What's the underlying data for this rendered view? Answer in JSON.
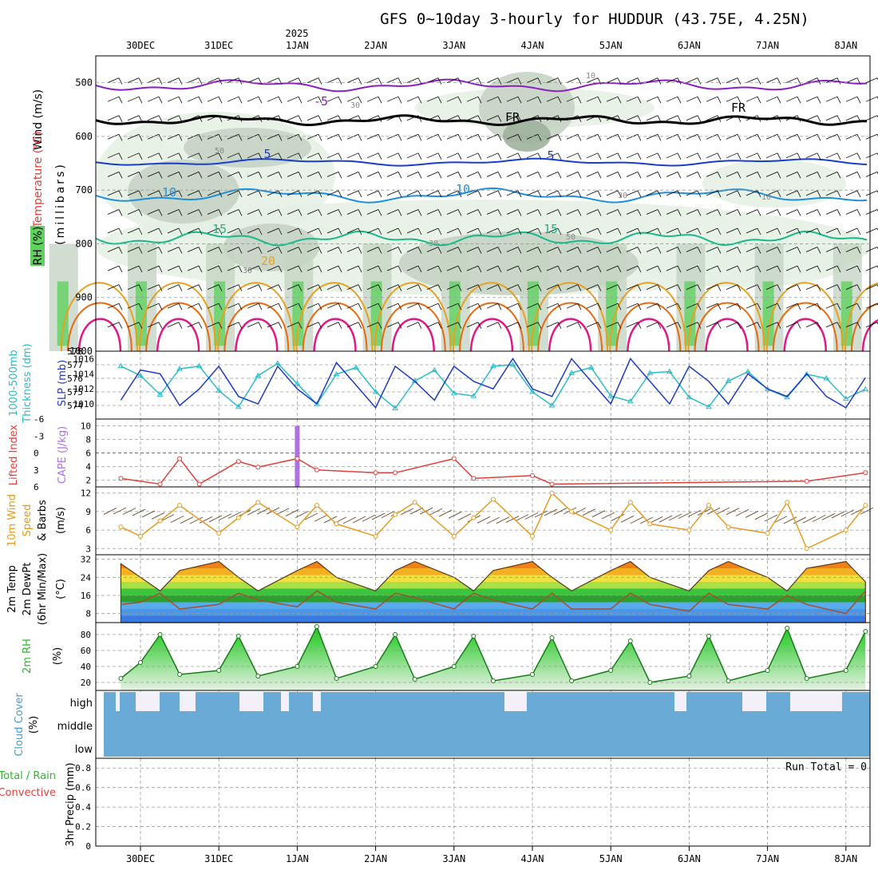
{
  "title": "GFS 0~10day 3-hourly for HUDDUR (43.75E, 4.25N)",
  "top_year_label": "2025",
  "date_labels": [
    "30DEC",
    "31DEC",
    "1JAN",
    "2JAN",
    "3JAN",
    "4JAN",
    "5JAN",
    "6JAN",
    "7JAN",
    "8JAN"
  ],
  "colors": {
    "temp_neg5": "#8a1fc2",
    "temp_fr": "#000000",
    "temp_5": "#1a3ec8",
    "temp_10": "#1e8fdc",
    "temp_15": "#18b88a",
    "temp_20": "#e8a020",
    "temp_25": "#e86a10",
    "temp_30": "#e01888",
    "rh_light": "#e6f1e4",
    "rh_mid": "#c6d4c4",
    "rh_dark": "#9fb39c",
    "rh_green": "#5fd15f",
    "slp": "#1f3bbf",
    "thickness": "#2bbcc9",
    "lifted_index": "#e0403a",
    "cape": "#b070e0",
    "wind10": "#e89a20",
    "barb": "#6b4a2a",
    "cloud": "#6aaad6",
    "rh2m": "#2cb82c",
    "precip_total": "#2cb82c",
    "precip_conv": "#e0403a"
  },
  "panels": {
    "upper": {
      "ylabels": [
        "Wind (m/s)",
        "Temperature (°C)",
        "(millibars)",
        "RH (%)"
      ],
      "ticks": [
        "500",
        "600",
        "700",
        "800",
        "900",
        "1000"
      ],
      "contour_labels": [
        "-5",
        "FR",
        "FR",
        "5",
        "5",
        "10",
        "10",
        "15",
        "15",
        "20",
        "30",
        "30",
        "30",
        "50",
        "50",
        "10",
        "10",
        "30"
      ]
    },
    "slp": {
      "ylabel1": "1000-500mb",
      "ylabel2": "Thickness (dm)",
      "ylabel3": "SLP (mb)",
      "left_ticks": [
        "578",
        "577",
        "576",
        "575",
        "574"
      ],
      "right_ticks": [
        "1016",
        "1014",
        "1012",
        "1010"
      ]
    },
    "li": {
      "ylabel1": "Lifted Index",
      "ylabel2": "CAPE (J/kg)",
      "left_ticks": [
        "-6",
        "-3",
        "0",
        "3",
        "6"
      ],
      "right_ticks": [
        "10",
        "8",
        "6",
        "4",
        "2"
      ]
    },
    "wind": {
      "ylabel1": "10m Wind",
      "ylabel2": "Speed",
      "ylabel3": "& Barbs",
      "ylabel4": "(m/s)",
      "ticks": [
        "12",
        "9",
        "6",
        "3"
      ]
    },
    "temp": {
      "ylabel1": "2m Temp",
      "ylabel2": "2m DewPt",
      "ylabel3": "(6hr Min/Max)",
      "ylabel4": "(°C)",
      "ticks": [
        "32",
        "24",
        "16",
        "8"
      ]
    },
    "rh": {
      "ylabel1": "2m RH",
      "ylabel2": "(%)",
      "ticks": [
        "80",
        "60",
        "40",
        "20"
      ]
    },
    "cloud": {
      "ylabel1": "Cloud Cover",
      "ylabel2": "(%)",
      "levels": [
        "high",
        "middle",
        "low"
      ]
    },
    "precip": {
      "ylabel1": "Total / Rain",
      "ylabel2": "Convective",
      "ylabel3": "3hr Precip (mm)",
      "ticks": [
        "0.8",
        "0.6",
        "0.4",
        "0.2",
        "0"
      ],
      "run_total": "Run Total = 0"
    }
  },
  "chart_data": [
    {
      "type": "line",
      "title": "1000-500mb Thickness (dm) / SLP (mb)",
      "x": [
        "29DEC 18Z",
        "30DEC 00Z",
        "30DEC 06Z",
        "30DEC 12Z",
        "30DEC 18Z",
        "31DEC 00Z",
        "31DEC 06Z",
        "31DEC 12Z",
        "31DEC 18Z",
        "1JAN 00Z",
        "1JAN 06Z",
        "1JAN 12Z",
        "1JAN 18Z",
        "2JAN 00Z",
        "2JAN 06Z",
        "2JAN 12Z",
        "2JAN 18Z",
        "3JAN 00Z",
        "3JAN 06Z",
        "3JAN 12Z",
        "3JAN 18Z",
        "4JAN 00Z",
        "4JAN 06Z",
        "4JAN 12Z",
        "4JAN 18Z",
        "5JAN 00Z",
        "5JAN 06Z",
        "5JAN 12Z",
        "5JAN 18Z",
        "6JAN 00Z",
        "6JAN 06Z",
        "6JAN 12Z",
        "6JAN 18Z",
        "7JAN 00Z",
        "7JAN 06Z",
        "7JAN 12Z",
        "7JAN 18Z",
        "8JAN 00Z",
        "8JAN 06Z"
      ],
      "series": [
        {
          "name": "SLP (mb)",
          "values": [
            1010.5,
            1014.5,
            1014.0,
            1009.8,
            1012.0,
            1015.0,
            1011.0,
            1010.0,
            1015.0,
            1012.0,
            1010.0,
            1015.5,
            1012.5,
            1009.5,
            1015.0,
            1013.0,
            1010.5,
            1015.0,
            1013.0,
            1012.0,
            1016.0,
            1012.0,
            1011.0,
            1016.0,
            1013.0,
            1010.0,
            1016.0,
            1013.0,
            1010.0,
            1015.0,
            1013.0,
            1010.0,
            1014.0,
            1012.0,
            1011.0,
            1014.0,
            1011.0,
            1009.5,
            1013.5
          ]
        },
        {
          "name": "1000-500mb Thickness (dm)",
          "values": [
            576.9,
            576.2,
            574.8,
            576.7,
            576.9,
            575.1,
            573.9,
            576.2,
            577.1,
            575.6,
            574.1,
            576.3,
            576.8,
            575.0,
            573.8,
            575.8,
            576.6,
            574.9,
            574.7,
            576.9,
            577.0,
            575.0,
            574.0,
            576.4,
            576.8,
            574.7,
            574.3,
            576.4,
            576.5,
            574.6,
            573.9,
            575.8,
            576.5,
            575.2,
            574.6,
            576.3,
            576.0,
            574.5,
            575.2
          ]
        }
      ],
      "ylim_left": [
        573,
        578
      ],
      "ylim_right": [
        1008,
        1017
      ]
    },
    {
      "type": "line",
      "title": "Lifted Index / CAPE (J/kg)",
      "x": [
        "29DEC 18Z",
        "30DEC 06Z",
        "30DEC 12Z",
        "30DEC 18Z",
        "31DEC 06Z",
        "31DEC 12Z",
        "1JAN 00Z",
        "1JAN 06Z",
        "2JAN 00Z",
        "2JAN 06Z",
        "3JAN 00Z",
        "3JAN 06Z",
        "4JAN 00Z",
        "4JAN 06Z",
        "7JAN 12Z",
        "8JAN 06Z"
      ],
      "series": [
        {
          "name": "Lifted Index",
          "values": [
            4.5,
            5.5,
            1.0,
            5.5,
            1.5,
            2.5,
            1.0,
            3.0,
            3.5,
            3.5,
            1.0,
            4.5,
            4.0,
            5.5,
            5.0,
            3.5
          ]
        },
        {
          "name": "CAPE (J/kg)",
          "values": [
            0,
            0,
            0,
            0,
            0,
            0,
            10,
            0,
            0,
            0,
            0,
            0,
            0,
            0,
            0,
            0
          ]
        }
      ],
      "ylim_left": [
        6,
        -6
      ],
      "ylim_right": [
        1,
        11
      ]
    },
    {
      "type": "line",
      "title": "10m Wind Speed (m/s)",
      "x": [
        "29DEC 18Z",
        "30DEC 00Z",
        "30DEC 06Z",
        "30DEC 12Z",
        "31DEC 00Z",
        "31DEC 06Z",
        "31DEC 12Z",
        "1JAN 00Z",
        "1JAN 06Z",
        "1JAN 12Z",
        "2JAN 00Z",
        "2JAN 06Z",
        "2JAN 12Z",
        "3JAN 00Z",
        "3JAN 06Z",
        "3JAN 12Z",
        "4JAN 00Z",
        "4JAN 06Z",
        "4JAN 12Z",
        "5JAN 00Z",
        "5JAN 06Z",
        "5JAN 12Z",
        "6JAN 00Z",
        "6JAN 06Z",
        "6JAN 12Z",
        "7JAN 00Z",
        "7JAN 06Z",
        "7JAN 12Z",
        "8JAN 00Z",
        "8JAN 06Z"
      ],
      "values": [
        6.5,
        5.0,
        7.5,
        10.0,
        5.5,
        8.0,
        10.5,
        6.5,
        10.0,
        7.0,
        5.0,
        8.5,
        10.5,
        5.0,
        8.0,
        11.0,
        5.0,
        12.0,
        9.0,
        6.0,
        10.5,
        7.0,
        6.0,
        10.0,
        6.5,
        5.5,
        10.5,
        3.0,
        6.0,
        10.0
      ],
      "ylim": [
        2,
        13
      ]
    },
    {
      "type": "area",
      "title": "2m Temp / 2m DewPt (°C)",
      "x": [
        "29DEC 18Z",
        "30DEC 00Z",
        "30DEC 06Z",
        "30DEC 12Z",
        "31DEC 00Z",
        "31DEC 06Z",
        "31DEC 12Z",
        "1JAN 00Z",
        "1JAN 06Z",
        "1JAN 12Z",
        "2JAN 00Z",
        "2JAN 06Z",
        "2JAN 12Z",
        "3JAN 00Z",
        "3JAN 06Z",
        "3JAN 12Z",
        "4JAN 00Z",
        "4JAN 06Z",
        "4JAN 12Z",
        "5JAN 00Z",
        "5JAN 06Z",
        "5JAN 12Z",
        "6JAN 00Z",
        "6JAN 06Z",
        "6JAN 12Z",
        "7JAN 00Z",
        "7JAN 06Z",
        "7JAN 12Z",
        "8JAN 00Z",
        "8JAN 06Z"
      ],
      "series": [
        {
          "name": "2m Temp",
          "values": [
            30,
            24,
            18,
            27,
            31,
            24,
            18,
            27,
            31,
            24,
            18,
            27,
            31,
            24,
            18,
            27,
            31,
            24,
            18,
            27,
            31,
            24,
            18,
            27,
            31,
            24,
            18,
            28,
            31,
            22
          ]
        },
        {
          "name": "2m DewPt",
          "values": [
            12,
            13,
            17,
            10,
            12,
            17,
            14,
            11,
            18,
            13,
            10,
            17,
            15,
            10,
            17,
            14,
            10,
            17,
            10,
            10,
            17,
            12,
            9,
            17,
            12,
            10,
            16,
            12,
            8,
            18
          ]
        }
      ],
      "ylim": [
        4,
        34
      ]
    },
    {
      "type": "area",
      "title": "2m RH (%)",
      "x": [
        "29DEC 18Z",
        "30DEC 00Z",
        "30DEC 06Z",
        "30DEC 12Z",
        "31DEC 00Z",
        "31DEC 06Z",
        "31DEC 12Z",
        "1JAN 00Z",
        "1JAN 06Z",
        "1JAN 12Z",
        "2JAN 00Z",
        "2JAN 06Z",
        "2JAN 12Z",
        "3JAN 00Z",
        "3JAN 06Z",
        "3JAN 12Z",
        "4JAN 00Z",
        "4JAN 06Z",
        "4JAN 12Z",
        "5JAN 00Z",
        "5JAN 06Z",
        "5JAN 12Z",
        "6JAN 00Z",
        "6JAN 06Z",
        "6JAN 12Z",
        "7JAN 00Z",
        "7JAN 06Z",
        "7JAN 12Z",
        "8JAN 00Z",
        "8JAN 06Z"
      ],
      "values": [
        25,
        45,
        80,
        30,
        35,
        78,
        28,
        40,
        90,
        25,
        40,
        80,
        24,
        40,
        78,
        22,
        30,
        76,
        22,
        35,
        72,
        20,
        28,
        78,
        22,
        35,
        88,
        25,
        35,
        84
      ],
      "ylim": [
        10,
        95
      ]
    },
    {
      "type": "bar",
      "title": "Cloud Cover (%)",
      "categories": [
        "high",
        "middle",
        "low"
      ],
      "values": [
        90,
        100,
        100
      ]
    },
    {
      "type": "bar",
      "title": "3hr Precip (mm)",
      "values": [
        0,
        0,
        0,
        0,
        0,
        0,
        0,
        0,
        0,
        0
      ],
      "ylim": [
        0,
        0.9
      ]
    }
  ]
}
